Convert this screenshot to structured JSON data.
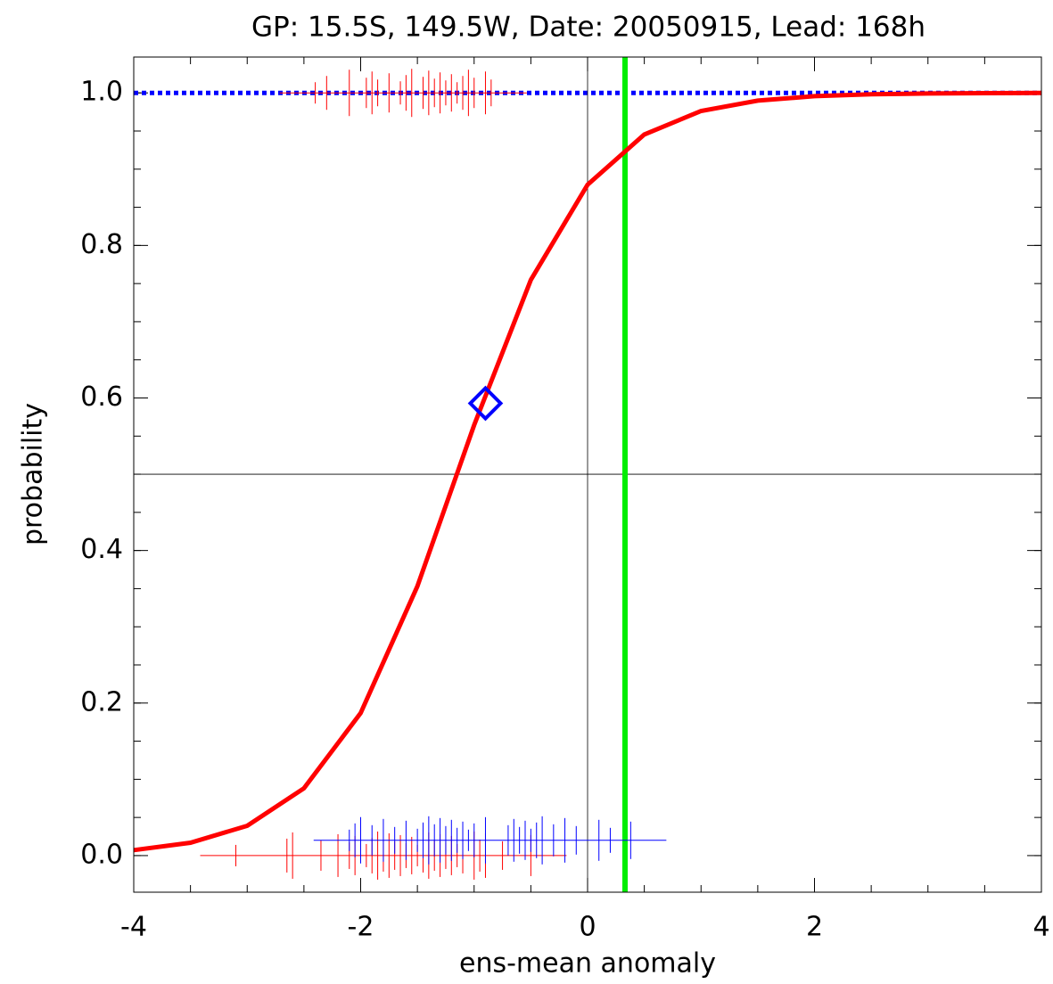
{
  "chart_data": {
    "type": "line",
    "title": "GP: 15.5S, 149.5W, Date: 20050915, Lead: 168h",
    "xlabel": "ens-mean anomaly",
    "ylabel": "probability",
    "xlim": [
      -4,
      4
    ],
    "ylim": [
      -0.048,
      1.047
    ],
    "xticks": [
      -4,
      -2,
      0,
      2,
      4
    ],
    "yticks": [
      {
        "value": 0,
        "label": "0.0"
      },
      {
        "value": 0.2,
        "label": "0.2"
      },
      {
        "value": 0.4,
        "label": "0.4"
      },
      {
        "value": 0.6,
        "label": "0.6"
      },
      {
        "value": 0.8,
        "label": "0.8"
      },
      {
        "value": 1,
        "label": "1.0"
      }
    ],
    "xminor_step": 0.5,
    "yminor_step": 0.05,
    "series": [
      {
        "color": "#ff0000",
        "x": [
          -4,
          -3.5,
          -3,
          -2.5,
          -2,
          -1.5,
          -1,
          -0.5,
          0,
          0.5,
          1,
          1.5,
          2,
          2.5,
          3,
          3.5,
          4
        ],
        "values": [
          0.0072,
          0.0169,
          0.0391,
          0.0883,
          0.1869,
          0.3531,
          0.5645,
          0.7548,
          0.8797,
          0.9455,
          0.9763,
          0.9899,
          0.9957,
          0.9982,
          0.9992,
          0.9997,
          0.9999
        ]
      }
    ],
    "rugs": [
      {
        "color": "#ff0000",
        "x": [
          -3.1,
          -2.65,
          -2.6,
          -2.35,
          -2.2,
          -2.1,
          -2.05,
          -1.95,
          -1.9,
          -1.85,
          -1.8,
          -1.75,
          -1.7,
          -1.65,
          -1.6,
          -1.55,
          -1.5,
          -1.45,
          -1.4,
          -1.35,
          -1.3,
          -1.25,
          -1.2,
          -1.15,
          -1.1,
          -1.0,
          -0.95,
          -0.9,
          -0.75,
          -0.5
        ],
        "values": [
          0,
          0,
          0,
          0,
          0,
          0,
          0,
          0,
          0,
          0,
          0,
          0,
          0,
          0,
          0,
          0,
          0,
          0,
          0,
          0,
          0,
          0,
          0,
          0,
          0,
          0,
          0,
          0,
          0,
          0
        ]
      },
      {
        "color": "#0000ff",
        "x": [
          -2.1,
          -2.05,
          -2.0,
          -1.9,
          -1.8,
          -1.7,
          -1.6,
          -1.5,
          -1.45,
          -1.4,
          -1.35,
          -1.3,
          -1.25,
          -1.2,
          -1.15,
          -1.1,
          -1.05,
          -1.0,
          -0.9,
          -0.7,
          -0.65,
          -0.6,
          -0.55,
          -0.5,
          -0.45,
          -0.4,
          -0.3,
          -0.2,
          -0.1,
          0.1,
          0.2,
          0.38
        ],
        "values": [
          0.02,
          0.02,
          0.02,
          0.02,
          0.02,
          0.02,
          0.02,
          0.02,
          0.02,
          0.02,
          0.02,
          0.02,
          0.02,
          0.02,
          0.02,
          0.02,
          0.02,
          0.02,
          0.02,
          0.02,
          0.02,
          0.02,
          0.02,
          0.02,
          0.02,
          0.02,
          0.02,
          0.02,
          0.02,
          0.02,
          0.02,
          0.02
        ]
      },
      {
        "color": "#ff0000",
        "x": [
          -2.4,
          -2.3,
          -2.1,
          -1.95,
          -1.9,
          -1.85,
          -1.75,
          -1.65,
          -1.6,
          -1.55,
          -1.45,
          -1.4,
          -1.35,
          -1.3,
          -1.25,
          -1.2,
          -1.15,
          -1.1,
          -1.05,
          -1.0,
          -0.9,
          -0.85
        ],
        "values": [
          1,
          1,
          1,
          1,
          1,
          1,
          1,
          1,
          1,
          1,
          1,
          1,
          1,
          1,
          1,
          1,
          1,
          1,
          1,
          1,
          1,
          1
        ]
      }
    ],
    "hlines": [
      {
        "value": 1,
        "color": "#0000ff",
        "style": "dotted"
      },
      {
        "value": 0.5,
        "color": "#000000",
        "style": "thin"
      }
    ],
    "vlines": [
      {
        "value": 0,
        "color": "#000000",
        "style": "thin"
      },
      {
        "value": 0.33,
        "color": "#00ee00",
        "style": "thick"
      }
    ],
    "marker": {
      "x": -0.9,
      "value": 0.593,
      "color": "#0000ff"
    }
  }
}
